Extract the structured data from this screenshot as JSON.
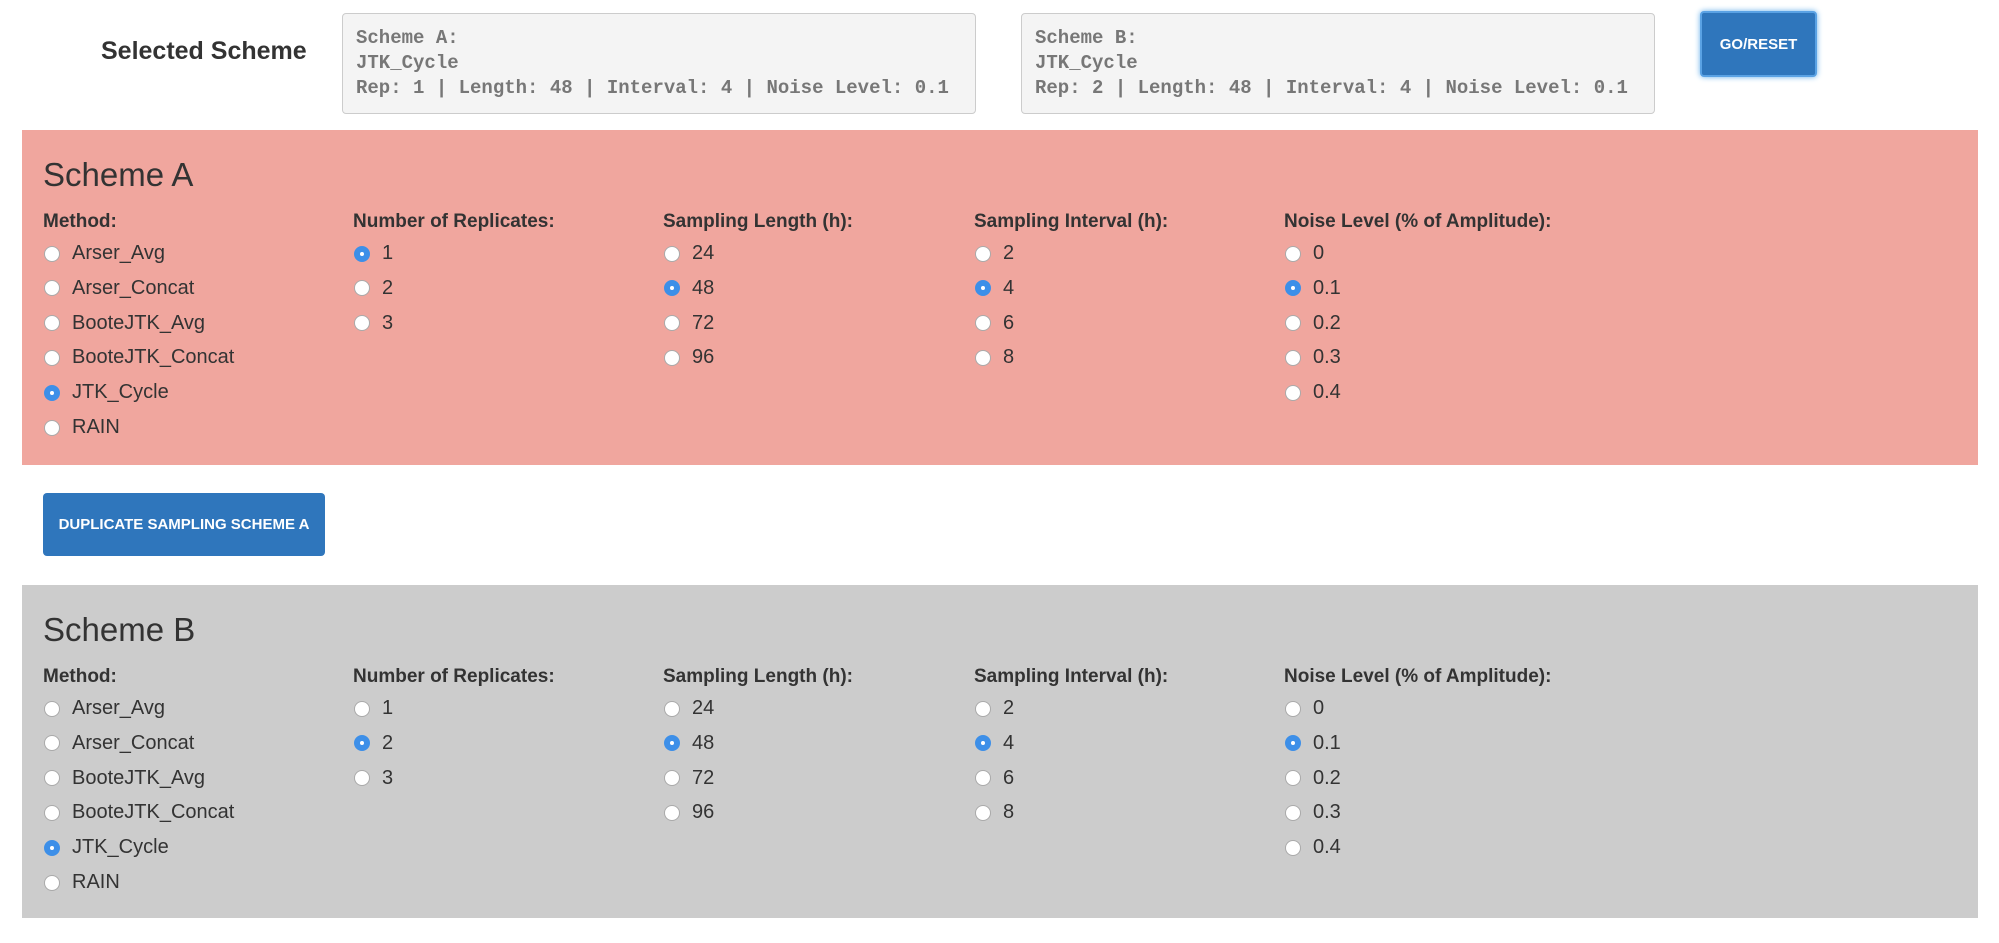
{
  "header": {
    "title": "Selected Scheme",
    "summaries": [
      {
        "lines": [
          "Scheme A:",
          "JTK_Cycle",
          "Rep: 1 | Length: 48 | Interval: 4 | Noise Level: 0.1"
        ]
      },
      {
        "lines": [
          "Scheme B:",
          "JTK_Cycle",
          "Rep: 2 | Length: 48 | Interval: 4 | Noise Level: 0.1"
        ]
      }
    ],
    "button": "GO/RESET"
  },
  "schemes": [
    {
      "title": "Scheme A",
      "groups": [
        {
          "label": "Method:",
          "options": [
            "Arser_Avg",
            "Arser_Concat",
            "BooteJTK_Avg",
            "BooteJTK_Concat",
            "JTK_Cycle",
            "RAIN"
          ],
          "selected": 4
        },
        {
          "label": "Number of Replicates:",
          "options": [
            "1",
            "2",
            "3"
          ],
          "selected": 0
        },
        {
          "label": "Sampling Length (h):",
          "options": [
            "24",
            "48",
            "72",
            "96"
          ],
          "selected": 1
        },
        {
          "label": "Sampling Interval (h):",
          "options": [
            "2",
            "4",
            "6",
            "8"
          ],
          "selected": 1
        },
        {
          "label": "Noise Level (% of Amplitude):",
          "options": [
            "0",
            "0.1",
            "0.2",
            "0.3",
            "0.4"
          ],
          "selected": 1
        }
      ]
    },
    {
      "title": "Scheme B",
      "groups": [
        {
          "label": "Method:",
          "options": [
            "Arser_Avg",
            "Arser_Concat",
            "BooteJTK_Avg",
            "BooteJTK_Concat",
            "JTK_Cycle",
            "RAIN"
          ],
          "selected": 4
        },
        {
          "label": "Number of Replicates:",
          "options": [
            "1",
            "2",
            "3"
          ],
          "selected": 1
        },
        {
          "label": "Sampling Length (h):",
          "options": [
            "24",
            "48",
            "72",
            "96"
          ],
          "selected": 1
        },
        {
          "label": "Sampling Interval (h):",
          "options": [
            "2",
            "4",
            "6",
            "8"
          ],
          "selected": 1
        },
        {
          "label": "Noise Level (% of Amplitude):",
          "options": [
            "0",
            "0.1",
            "0.2",
            "0.3",
            "0.4"
          ],
          "selected": 1
        }
      ]
    }
  ],
  "duplicate_button": "DUPLICATE SAMPLING SCHEME A"
}
